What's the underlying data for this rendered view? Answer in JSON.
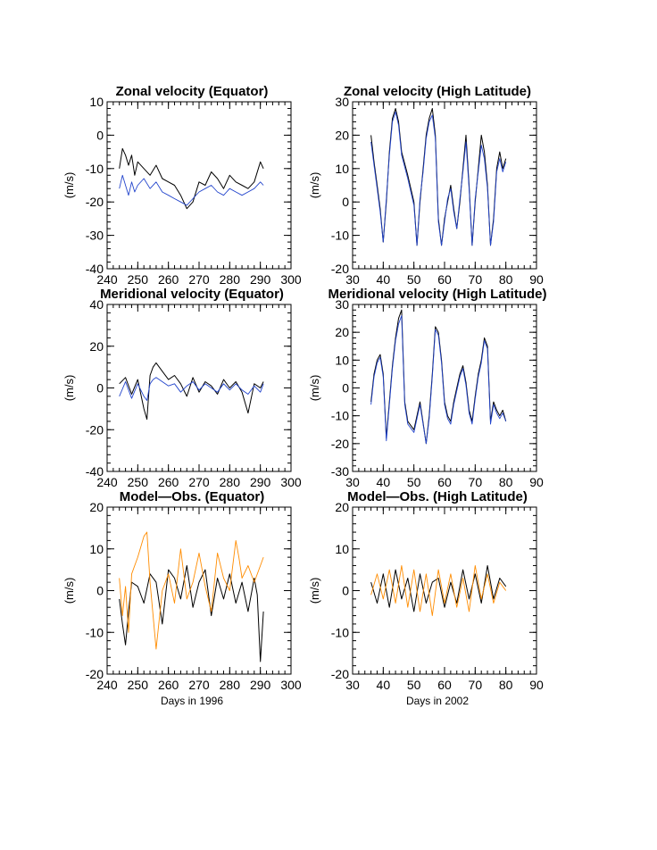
{
  "chart_data": [
    {
      "type": "line",
      "title": "Zonal velocity (Equator)",
      "xlabel": "",
      "ylabel": "(m/s)",
      "xlim": [
        240,
        300
      ],
      "ylim": [
        -40,
        10
      ],
      "xticks": [
        240,
        250,
        260,
        270,
        280,
        290,
        300
      ],
      "yticks": [
        -40,
        -30,
        -20,
        -10,
        0,
        10
      ],
      "series": [
        {
          "color": "#000000",
          "x": [
            244,
            245,
            246,
            247,
            248,
            249,
            250,
            252,
            254,
            256,
            258,
            260,
            262,
            264,
            266,
            268,
            270,
            272,
            274,
            276,
            278,
            280,
            282,
            284,
            286,
            288,
            290,
            291
          ],
          "y": [
            -10,
            -4,
            -6,
            -9,
            -6,
            -12,
            -8,
            -10,
            -12,
            -9,
            -13,
            -14,
            -15,
            -18,
            -22,
            -20,
            -14,
            -15,
            -11,
            -13,
            -16,
            -12,
            -14,
            -15,
            -16,
            -14,
            -8,
            -10
          ]
        },
        {
          "color": "#2244cc",
          "x": [
            244,
            245,
            246,
            247,
            248,
            249,
            250,
            252,
            254,
            256,
            258,
            260,
            262,
            264,
            266,
            268,
            270,
            272,
            274,
            276,
            278,
            280,
            282,
            284,
            286,
            288,
            290,
            291
          ],
          "y": [
            -16,
            -12,
            -15,
            -18,
            -14,
            -17,
            -15,
            -13,
            -16,
            -14,
            -17,
            -18,
            -19,
            -20,
            -21,
            -19,
            -17,
            -16,
            -15,
            -17,
            -18,
            -16,
            -17,
            -18,
            -17,
            -16,
            -14,
            -15
          ]
        }
      ]
    },
    {
      "type": "line",
      "title": "Zonal velocity (High Latitude)",
      "xlabel": "",
      "ylabel": "(m/s)",
      "xlim": [
        30,
        90
      ],
      "ylim": [
        -20,
        30
      ],
      "xticks": [
        30,
        40,
        50,
        60,
        70,
        80,
        90
      ],
      "yticks": [
        -20,
        -10,
        0,
        10,
        20,
        30
      ],
      "series": [
        {
          "color": "#000000",
          "x": [
            36,
            37,
            38,
            39,
            40,
            41,
            42,
            43,
            44,
            45,
            46,
            48,
            50,
            51,
            52,
            53,
            54,
            55,
            56,
            57,
            58,
            59,
            60,
            61,
            62,
            63,
            64,
            65,
            66,
            67,
            68,
            69,
            70,
            71,
            72,
            73,
            74,
            75,
            76,
            77,
            78,
            79,
            80
          ],
          "y": [
            20,
            12,
            5,
            -2,
            -12,
            0,
            15,
            25,
            28,
            24,
            15,
            8,
            0,
            -13,
            0,
            10,
            20,
            25,
            28,
            20,
            -5,
            -13,
            -5,
            0,
            5,
            -2,
            -8,
            0,
            10,
            20,
            5,
            -13,
            0,
            10,
            20,
            15,
            5,
            -13,
            -5,
            10,
            15,
            10,
            13
          ]
        },
        {
          "color": "#2244cc",
          "x": [
            36,
            37,
            38,
            39,
            40,
            41,
            42,
            43,
            44,
            45,
            46,
            48,
            50,
            51,
            52,
            53,
            54,
            55,
            56,
            57,
            58,
            59,
            60,
            61,
            62,
            63,
            64,
            65,
            66,
            67,
            68,
            69,
            70,
            71,
            72,
            73,
            74,
            75,
            76,
            77,
            78,
            79,
            80
          ],
          "y": [
            18,
            11,
            4,
            -3,
            -12,
            1,
            14,
            24,
            27,
            23,
            14,
            7,
            -1,
            -13,
            1,
            9,
            19,
            24,
            26,
            19,
            -6,
            -13,
            -6,
            1,
            4,
            -3,
            -8,
            1,
            9,
            18,
            4,
            -13,
            1,
            9,
            17,
            13,
            4,
            -13,
            -6,
            9,
            13,
            9,
            12
          ]
        }
      ]
    },
    {
      "type": "line",
      "title": "Meridional velocity (Equator)",
      "xlabel": "",
      "ylabel": "(m/s)",
      "xlim": [
        240,
        300
      ],
      "ylim": [
        -40,
        40
      ],
      "xticks": [
        240,
        250,
        260,
        270,
        280,
        290,
        300
      ],
      "yticks": [
        -40,
        -20,
        0,
        20,
        40
      ],
      "series": [
        {
          "color": "#000000",
          "x": [
            244,
            246,
            248,
            250,
            252,
            253,
            254,
            255,
            256,
            258,
            260,
            262,
            264,
            266,
            268,
            270,
            272,
            274,
            276,
            278,
            280,
            282,
            284,
            286,
            288,
            290,
            291
          ],
          "y": [
            2,
            5,
            -3,
            4,
            -10,
            -15,
            6,
            10,
            12,
            8,
            4,
            6,
            2,
            -4,
            5,
            -2,
            3,
            1,
            -3,
            4,
            0,
            3,
            -2,
            -12,
            2,
            0,
            3
          ]
        },
        {
          "color": "#2244cc",
          "x": [
            244,
            246,
            248,
            250,
            252,
            253,
            254,
            255,
            256,
            258,
            260,
            262,
            264,
            266,
            268,
            270,
            272,
            274,
            276,
            278,
            280,
            282,
            284,
            286,
            288,
            290,
            291
          ],
          "y": [
            -4,
            3,
            -5,
            2,
            -4,
            -6,
            2,
            4,
            5,
            3,
            1,
            2,
            -2,
            1,
            3,
            -1,
            2,
            0,
            -2,
            2,
            -1,
            2,
            -1,
            -3,
            1,
            -2,
            2
          ]
        }
      ]
    },
    {
      "type": "line",
      "title": "Meridional velocity (High Latitude)",
      "xlabel": "",
      "ylabel": "(m/s)",
      "xlim": [
        30,
        90
      ],
      "ylim": [
        -30,
        30
      ],
      "xticks": [
        30,
        40,
        50,
        60,
        70,
        80,
        90
      ],
      "yticks": [
        -30,
        -20,
        -10,
        0,
        10,
        20,
        30
      ],
      "series": [
        {
          "color": "#000000",
          "x": [
            36,
            37,
            38,
            39,
            40,
            41,
            42,
            43,
            44,
            45,
            46,
            47,
            48,
            50,
            52,
            54,
            55,
            56,
            57,
            58,
            59,
            60,
            61,
            62,
            63,
            64,
            65,
            66,
            67,
            68,
            69,
            70,
            71,
            72,
            73,
            74,
            75,
            76,
            77,
            78,
            79,
            80
          ],
          "y": [
            -5,
            5,
            10,
            12,
            5,
            -18,
            -5,
            8,
            18,
            25,
            28,
            -5,
            -12,
            -15,
            -5,
            -20,
            -10,
            5,
            22,
            20,
            10,
            -5,
            -10,
            -12,
            -5,
            0,
            5,
            8,
            2,
            -8,
            -12,
            -3,
            5,
            10,
            18,
            15,
            -12,
            -5,
            -8,
            -10,
            -8,
            -12
          ]
        },
        {
          "color": "#2244cc",
          "x": [
            36,
            37,
            38,
            39,
            40,
            41,
            42,
            43,
            44,
            45,
            46,
            47,
            48,
            50,
            52,
            54,
            55,
            56,
            57,
            58,
            59,
            60,
            61,
            62,
            63,
            64,
            65,
            66,
            67,
            68,
            69,
            70,
            71,
            72,
            73,
            74,
            75,
            76,
            77,
            78,
            79,
            80
          ],
          "y": [
            -6,
            4,
            9,
            11,
            4,
            -19,
            -6,
            7,
            17,
            23,
            26,
            -6,
            -13,
            -16,
            -6,
            -20,
            -11,
            4,
            21,
            19,
            9,
            -6,
            -11,
            -13,
            -6,
            -1,
            4,
            7,
            1,
            -9,
            -13,
            -4,
            4,
            9,
            17,
            14,
            -13,
            -6,
            -9,
            -11,
            -9,
            -12
          ]
        }
      ]
    },
    {
      "type": "line",
      "title": "Model—Obs. (Equator)",
      "xlabel": "Days in 1996",
      "ylabel": "(m/s)",
      "xlim": [
        240,
        300
      ],
      "ylim": [
        -20,
        20
      ],
      "xticks": [
        240,
        250,
        260,
        270,
        280,
        290,
        300
      ],
      "yticks": [
        -20,
        -10,
        0,
        10,
        20
      ],
      "series": [
        {
          "color": "#000000",
          "x": [
            244,
            245,
            246,
            247,
            248,
            250,
            252,
            254,
            256,
            258,
            260,
            262,
            264,
            266,
            268,
            270,
            272,
            274,
            276,
            278,
            280,
            282,
            284,
            286,
            288,
            289,
            290,
            291
          ],
          "y": [
            -2,
            -8,
            -13,
            -5,
            2,
            1,
            -3,
            4,
            2,
            -8,
            5,
            3,
            -2,
            6,
            -4,
            2,
            5,
            -6,
            3,
            -2,
            4,
            -3,
            2,
            -5,
            3,
            -1,
            -17,
            -5
          ]
        },
        {
          "color": "#ff8c00",
          "x": [
            244,
            245,
            246,
            247,
            248,
            250,
            252,
            253,
            254,
            256,
            258,
            260,
            262,
            264,
            266,
            268,
            270,
            272,
            274,
            276,
            278,
            280,
            282,
            283,
            284,
            286,
            288,
            290,
            291
          ],
          "y": [
            3,
            -6,
            1,
            -10,
            4,
            8,
            13,
            14,
            2,
            -14,
            0,
            4,
            -3,
            10,
            -2,
            2,
            9,
            1,
            -5,
            9,
            3,
            0,
            12,
            8,
            3,
            6,
            2,
            6,
            8
          ]
        }
      ]
    },
    {
      "type": "line",
      "title": "Model—Obs. (High Latitude)",
      "xlabel": "Days in 2002",
      "ylabel": "(m/s)",
      "xlim": [
        30,
        90
      ],
      "ylim": [
        -20,
        20
      ],
      "xticks": [
        30,
        40,
        50,
        60,
        70,
        80,
        90
      ],
      "yticks": [
        -20,
        -10,
        0,
        10,
        20
      ],
      "series": [
        {
          "color": "#000000",
          "x": [
            36,
            38,
            40,
            42,
            44,
            46,
            48,
            50,
            52,
            54,
            56,
            58,
            60,
            62,
            64,
            66,
            68,
            70,
            72,
            74,
            76,
            78,
            80
          ],
          "y": [
            2,
            -3,
            4,
            -4,
            5,
            -2,
            3,
            -5,
            4,
            -3,
            2,
            3,
            -4,
            2,
            -3,
            5,
            -2,
            4,
            -3,
            6,
            -2,
            3,
            1
          ]
        },
        {
          "color": "#ff8c00",
          "x": [
            36,
            38,
            40,
            42,
            44,
            46,
            48,
            50,
            52,
            54,
            56,
            58,
            60,
            62,
            64,
            66,
            68,
            70,
            72,
            74,
            76,
            78,
            80
          ],
          "y": [
            -1,
            4,
            -2,
            5,
            -3,
            6,
            -4,
            5,
            -5,
            4,
            -6,
            5,
            -3,
            4,
            -4,
            3,
            -5,
            6,
            -2,
            4,
            -3,
            2,
            0
          ]
        }
      ]
    }
  ]
}
